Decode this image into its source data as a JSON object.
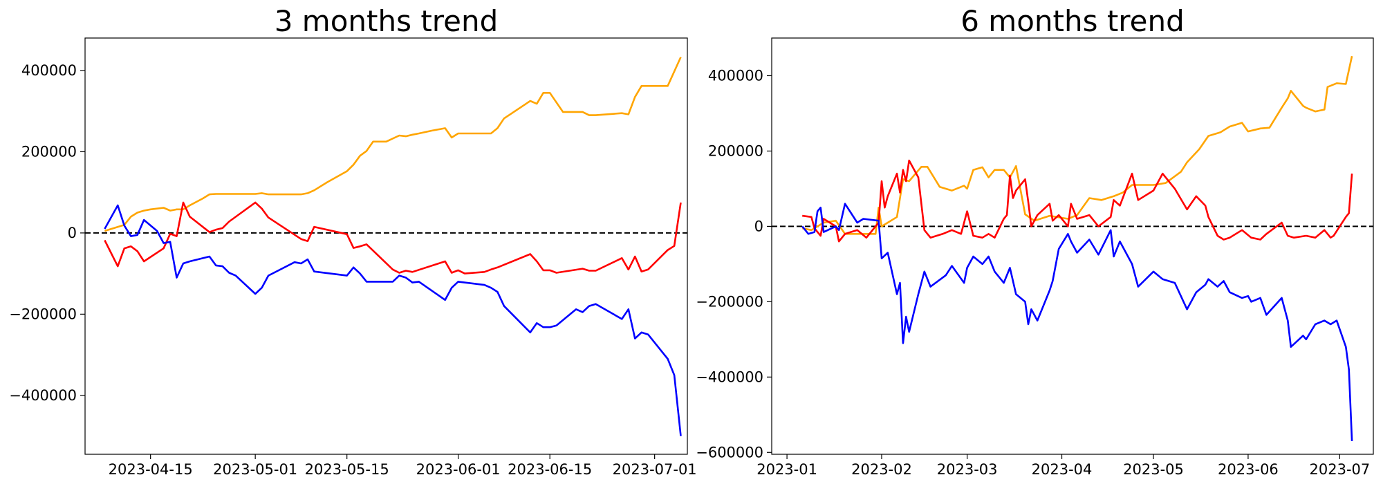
{
  "chart_data": [
    {
      "type": "line",
      "title": "3 months trend",
      "xlabel": "",
      "ylabel": "",
      "xlim": [
        "2023-04-05",
        "2023-07-06"
      ],
      "ylim": [
        -545000,
        480000
      ],
      "x_tick_labels": [
        "2023-04-15",
        "2023-05-01",
        "2023-05-15",
        "2023-06-01",
        "2023-06-15",
        "2023-07-01"
      ],
      "y_ticks": [
        -400000,
        -200000,
        0,
        200000,
        400000
      ],
      "y_tick_labels": [
        "−400000",
        "−200000",
        "0",
        "200000",
        "400000"
      ],
      "reference_line": {
        "y": 0,
        "style": "dashed",
        "color": "#000000"
      },
      "grid": false,
      "series": [
        {
          "color": "#ffa500",
          "x": [
            "2023-04-08",
            "2023-04-11",
            "2023-04-12",
            "2023-04-13",
            "2023-04-14",
            "2023-04-15",
            "2023-04-17",
            "2023-04-18",
            "2023-04-19",
            "2023-04-20",
            "2023-04-21",
            "2023-04-23",
            "2023-04-24",
            "2023-04-25",
            "2023-04-27",
            "2023-05-01",
            "2023-05-02",
            "2023-05-03",
            "2023-05-05",
            "2023-05-08",
            "2023-05-09",
            "2023-05-10",
            "2023-05-12",
            "2023-05-15",
            "2023-05-16",
            "2023-05-17",
            "2023-05-18",
            "2023-05-19",
            "2023-05-21",
            "2023-05-23",
            "2023-05-24",
            "2023-05-25",
            "2023-05-26",
            "2023-05-28",
            "2023-05-30",
            "2023-05-31",
            "2023-06-01",
            "2023-06-02",
            "2023-06-06",
            "2023-06-07",
            "2023-06-08",
            "2023-06-12",
            "2023-06-13",
            "2023-06-14",
            "2023-06-15",
            "2023-06-17",
            "2023-06-20",
            "2023-06-21",
            "2023-06-22",
            "2023-06-26",
            "2023-06-27",
            "2023-06-28",
            "2023-06-29",
            "2023-07-03",
            "2023-07-05"
          ],
          "y": [
            5000,
            20000,
            40000,
            50000,
            55000,
            58000,
            62000,
            55000,
            58000,
            58000,
            68000,
            85000,
            95000,
            96000,
            96000,
            96000,
            98000,
            95000,
            95000,
            95000,
            98000,
            105000,
            125000,
            152000,
            168000,
            190000,
            202000,
            225000,
            225000,
            240000,
            238000,
            242000,
            245000,
            252000,
            258000,
            235000,
            245000,
            245000,
            245000,
            258000,
            282000,
            325000,
            318000,
            345000,
            345000,
            298000,
            298000,
            290000,
            290000,
            295000,
            292000,
            335000,
            362000,
            362000,
            433000
          ]
        },
        {
          "color": "#ff0000",
          "x": [
            "2023-04-08",
            "2023-04-10",
            "2023-04-11",
            "2023-04-12",
            "2023-04-13",
            "2023-04-14",
            "2023-04-17",
            "2023-04-18",
            "2023-04-19",
            "2023-04-20",
            "2023-04-21",
            "2023-04-24",
            "2023-04-25",
            "2023-04-26",
            "2023-04-27",
            "2023-05-01",
            "2023-05-02",
            "2023-05-03",
            "2023-05-08",
            "2023-05-09",
            "2023-05-10",
            "2023-05-15",
            "2023-05-16",
            "2023-05-17",
            "2023-05-18",
            "2023-05-22",
            "2023-05-23",
            "2023-05-24",
            "2023-05-25",
            "2023-05-30",
            "2023-05-31",
            "2023-06-01",
            "2023-06-02",
            "2023-06-05",
            "2023-06-06",
            "2023-06-07",
            "2023-06-12",
            "2023-06-13",
            "2023-06-14",
            "2023-06-15",
            "2023-06-16",
            "2023-06-20",
            "2023-06-21",
            "2023-06-22",
            "2023-06-26",
            "2023-06-27",
            "2023-06-28",
            "2023-06-29",
            "2023-06-30",
            "2023-07-03",
            "2023-07-04",
            "2023-07-05"
          ],
          "y": [
            -18000,
            -82000,
            -38000,
            -33000,
            -45000,
            -70000,
            -38000,
            -2000,
            -8000,
            75000,
            40000,
            2000,
            8000,
            12000,
            28000,
            75000,
            60000,
            38000,
            -15000,
            -20000,
            15000,
            -3000,
            -37000,
            -33000,
            -28000,
            -90000,
            -98000,
            -93000,
            -96000,
            -70000,
            -98000,
            -92000,
            -100000,
            -96000,
            -90000,
            -85000,
            -52000,
            -70000,
            -92000,
            -92000,
            -98000,
            -88000,
            -93000,
            -93000,
            -62000,
            -90000,
            -58000,
            -95000,
            -90000,
            -42000,
            -32000,
            75000
          ]
        },
        {
          "color": "#0000ff",
          "x": [
            "2023-04-08",
            "2023-04-10",
            "2023-04-11",
            "2023-04-12",
            "2023-04-13",
            "2023-04-14",
            "2023-04-16",
            "2023-04-17",
            "2023-04-18",
            "2023-04-19",
            "2023-04-20",
            "2023-04-21",
            "2023-04-24",
            "2023-04-25",
            "2023-04-26",
            "2023-04-27",
            "2023-04-28",
            "2023-05-01",
            "2023-05-02",
            "2023-05-03",
            "2023-05-07",
            "2023-05-08",
            "2023-05-09",
            "2023-05-10",
            "2023-05-15",
            "2023-05-16",
            "2023-05-17",
            "2023-05-18",
            "2023-05-22",
            "2023-05-23",
            "2023-05-24",
            "2023-05-25",
            "2023-05-26",
            "2023-05-30",
            "2023-05-31",
            "2023-06-01",
            "2023-06-05",
            "2023-06-06",
            "2023-06-07",
            "2023-06-08",
            "2023-06-12",
            "2023-06-13",
            "2023-06-14",
            "2023-06-15",
            "2023-06-16",
            "2023-06-19",
            "2023-06-20",
            "2023-06-21",
            "2023-06-22",
            "2023-06-26",
            "2023-06-27",
            "2023-06-28",
            "2023-06-29",
            "2023-06-30",
            "2023-07-03",
            "2023-07-04",
            "2023-07-05"
          ],
          "y": [
            10000,
            68000,
            18000,
            -8000,
            -5000,
            32000,
            5000,
            -25000,
            -22000,
            -110000,
            -75000,
            -70000,
            -58000,
            -80000,
            -82000,
            -98000,
            -105000,
            -150000,
            -135000,
            -105000,
            -72000,
            -75000,
            -65000,
            -95000,
            -105000,
            -85000,
            -100000,
            -120000,
            -120000,
            -105000,
            -110000,
            -122000,
            -120000,
            -165000,
            -135000,
            -120000,
            -128000,
            -135000,
            -145000,
            -180000,
            -245000,
            -222000,
            -232000,
            -232000,
            -228000,
            -188000,
            -195000,
            -180000,
            -175000,
            -212000,
            -188000,
            -260000,
            -245000,
            -250000,
            -310000,
            -350000,
            -500000
          ]
        }
      ]
    },
    {
      "type": "line",
      "title": "6 months trend",
      "xlabel": "",
      "ylabel": "",
      "xlim": [
        "2022-12-27",
        "2023-07-12"
      ],
      "ylim": [
        -605000,
        500000
      ],
      "x_tick_labels": [
        "2023-01",
        "2023-02",
        "2023-03",
        "2023-04",
        "2023-05",
        "2023-06",
        "2023-07"
      ],
      "y_ticks": [
        -600000,
        -400000,
        -200000,
        0,
        200000,
        400000
      ],
      "y_tick_labels": [
        "−600000",
        "−400000",
        "−200000",
        "0",
        "200000",
        "400000"
      ],
      "reference_line": {
        "y": 0,
        "style": "dashed",
        "color": "#000000"
      },
      "grid": false,
      "series": [
        {
          "color": "#ffa500",
          "x": [
            "2023-01-06",
            "2023-01-09",
            "2023-01-13",
            "2023-01-17",
            "2023-01-20",
            "2023-01-23",
            "2023-01-30",
            "2023-01-31",
            "2023-02-01",
            "2023-02-03",
            "2023-02-06",
            "2023-02-08",
            "2023-02-10",
            "2023-02-14",
            "2023-02-16",
            "2023-02-20",
            "2023-02-24",
            "2023-02-28",
            "2023-03-01",
            "2023-03-03",
            "2023-03-06",
            "2023-03-08",
            "2023-03-10",
            "2023-03-13",
            "2023-03-15",
            "2023-03-17",
            "2023-03-20",
            "2023-03-23",
            "2023-03-28",
            "2023-04-03",
            "2023-04-06",
            "2023-04-10",
            "2023-04-14",
            "2023-04-18",
            "2023-04-21",
            "2023-04-24",
            "2023-05-01",
            "2023-05-05",
            "2023-05-10",
            "2023-05-12",
            "2023-05-16",
            "2023-05-19",
            "2023-05-23",
            "2023-05-26",
            "2023-05-30",
            "2023-06-01",
            "2023-06-05",
            "2023-06-08",
            "2023-06-12",
            "2023-06-14",
            "2023-06-15",
            "2023-06-19",
            "2023-06-20",
            "2023-06-23",
            "2023-06-26",
            "2023-06-27",
            "2023-06-30",
            "2023-07-03",
            "2023-07-05"
          ],
          "y": [
            -5000,
            -10000,
            10000,
            15000,
            -20000,
            -20000,
            -20000,
            50000,
            0,
            10000,
            25000,
            125000,
            120000,
            158000,
            158000,
            105000,
            95000,
            108000,
            100000,
            150000,
            157000,
            130000,
            150000,
            150000,
            130000,
            160000,
            32000,
            15000,
            28000,
            20000,
            30000,
            75000,
            70000,
            80000,
            90000,
            110000,
            110000,
            115000,
            145000,
            170000,
            205000,
            240000,
            250000,
            265000,
            275000,
            252000,
            260000,
            262000,
            315000,
            340000,
            360000,
            320000,
            315000,
            305000,
            310000,
            370000,
            380000,
            378000,
            452000
          ]
        },
        {
          "color": "#ff0000",
          "x": [
            "2023-01-06",
            "2023-01-09",
            "2023-01-10",
            "2023-01-12",
            "2023-01-13",
            "2023-01-17",
            "2023-01-18",
            "2023-01-20",
            "2023-01-24",
            "2023-01-27",
            "2023-01-31",
            "2023-02-01",
            "2023-02-02",
            "2023-02-03",
            "2023-02-06",
            "2023-02-07",
            "2023-02-08",
            "2023-02-09",
            "2023-02-10",
            "2023-02-13",
            "2023-02-14",
            "2023-02-15",
            "2023-02-17",
            "2023-02-21",
            "2023-02-24",
            "2023-02-27",
            "2023-03-01",
            "2023-03-03",
            "2023-03-06",
            "2023-03-08",
            "2023-03-10",
            "2023-03-13",
            "2023-03-14",
            "2023-03-15",
            "2023-03-16",
            "2023-03-17",
            "2023-03-20",
            "2023-03-21",
            "2023-03-22",
            "2023-03-24",
            "2023-03-28",
            "2023-03-29",
            "2023-03-31",
            "2023-04-03",
            "2023-04-04",
            "2023-04-06",
            "2023-04-10",
            "2023-04-13",
            "2023-04-17",
            "2023-04-18",
            "2023-04-20",
            "2023-04-24",
            "2023-04-26",
            "2023-05-01",
            "2023-05-04",
            "2023-05-08",
            "2023-05-12",
            "2023-05-15",
            "2023-05-18",
            "2023-05-19",
            "2023-05-22",
            "2023-05-24",
            "2023-05-26",
            "2023-05-30",
            "2023-06-02",
            "2023-06-05",
            "2023-06-07",
            "2023-06-12",
            "2023-06-14",
            "2023-06-16",
            "2023-06-20",
            "2023-06-23",
            "2023-06-26",
            "2023-06-28",
            "2023-06-29",
            "2023-07-03",
            "2023-07-04",
            "2023-07-05"
          ],
          "y": [
            28000,
            25000,
            -5000,
            -25000,
            20000,
            0,
            -40000,
            -20000,
            -10000,
            -30000,
            10000,
            120000,
            50000,
            80000,
            140000,
            90000,
            150000,
            120000,
            175000,
            130000,
            60000,
            -10000,
            -30000,
            -20000,
            -10000,
            -20000,
            40000,
            -25000,
            -30000,
            -20000,
            -30000,
            20000,
            30000,
            135000,
            75000,
            95000,
            125000,
            65000,
            0,
            30000,
            60000,
            15000,
            30000,
            0,
            60000,
            20000,
            30000,
            0,
            25000,
            70000,
            55000,
            140000,
            70000,
            95000,
            140000,
            100000,
            45000,
            80000,
            55000,
            25000,
            -25000,
            -35000,
            -30000,
            -10000,
            -30000,
            -35000,
            -20000,
            10000,
            -25000,
            -30000,
            -25000,
            -30000,
            -10000,
            -30000,
            -25000,
            25000,
            35000,
            140000
          ]
        },
        {
          "color": "#0000ff",
          "x": [
            "2023-01-06",
            "2023-01-08",
            "2023-01-10",
            "2023-01-11",
            "2023-01-12",
            "2023-01-13",
            "2023-01-17",
            "2023-01-18",
            "2023-01-20",
            "2023-01-24",
            "2023-01-26",
            "2023-01-31",
            "2023-02-01",
            "2023-02-03",
            "2023-02-06",
            "2023-02-07",
            "2023-02-08",
            "2023-02-09",
            "2023-02-10",
            "2023-02-13",
            "2023-02-15",
            "2023-02-17",
            "2023-02-22",
            "2023-02-24",
            "2023-02-28",
            "2023-03-01",
            "2023-03-03",
            "2023-03-06",
            "2023-03-08",
            "2023-03-10",
            "2023-03-13",
            "2023-03-15",
            "2023-03-17",
            "2023-03-20",
            "2023-03-21",
            "2023-03-22",
            "2023-03-24",
            "2023-03-28",
            "2023-03-29",
            "2023-03-31",
            "2023-04-03",
            "2023-04-04",
            "2023-04-06",
            "2023-04-10",
            "2023-04-13",
            "2023-04-17",
            "2023-04-18",
            "2023-04-20",
            "2023-04-24",
            "2023-04-26",
            "2023-05-01",
            "2023-05-04",
            "2023-05-08",
            "2023-05-12",
            "2023-05-15",
            "2023-05-18",
            "2023-05-19",
            "2023-05-22",
            "2023-05-24",
            "2023-05-26",
            "2023-05-30",
            "2023-06-01",
            "2023-06-02",
            "2023-06-05",
            "2023-06-07",
            "2023-06-12",
            "2023-06-14",
            "2023-06-15",
            "2023-06-19",
            "2023-06-20",
            "2023-06-23",
            "2023-06-26",
            "2023-06-28",
            "2023-06-30",
            "2023-07-03",
            "2023-07-04",
            "2023-07-05"
          ],
          "y": [
            0,
            -20000,
            -15000,
            40000,
            50000,
            -15000,
            0,
            -10000,
            60000,
            10000,
            20000,
            15000,
            -85000,
            -70000,
            -180000,
            -150000,
            -310000,
            -240000,
            -280000,
            -180000,
            -120000,
            -160000,
            -130000,
            -105000,
            -150000,
            -110000,
            -80000,
            -100000,
            -80000,
            -120000,
            -150000,
            -110000,
            -180000,
            -200000,
            -260000,
            -220000,
            -250000,
            -170000,
            -145000,
            -60000,
            -20000,
            -40000,
            -70000,
            -35000,
            -75000,
            -10000,
            -80000,
            -40000,
            -100000,
            -160000,
            -120000,
            -140000,
            -150000,
            -220000,
            -175000,
            -155000,
            -140000,
            -160000,
            -145000,
            -175000,
            -190000,
            -185000,
            -200000,
            -190000,
            -235000,
            -190000,
            -250000,
            -320000,
            -290000,
            -300000,
            -260000,
            -250000,
            -260000,
            -250000,
            -320000,
            -380000,
            -570000
          ]
        }
      ]
    }
  ]
}
